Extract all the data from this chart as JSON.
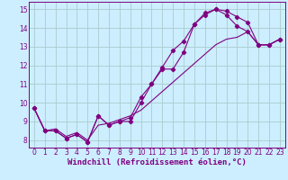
{
  "xlabel": "Windchill (Refroidissement éolien,°C)",
  "bg_color": "#cceeff",
  "line_color": "#800080",
  "grid_color": "#aacccc",
  "xlim": [
    -0.5,
    23.5
  ],
  "ylim": [
    7.6,
    15.4
  ],
  "yticks": [
    8,
    9,
    10,
    11,
    12,
    13,
    14,
    15
  ],
  "xticks": [
    0,
    1,
    2,
    3,
    4,
    5,
    6,
    7,
    8,
    9,
    10,
    11,
    12,
    13,
    14,
    15,
    16,
    17,
    18,
    19,
    20,
    21,
    22,
    23
  ],
  "line1_x": [
    0,
    1,
    2,
    3,
    4,
    5,
    6,
    7,
    8,
    9,
    10,
    11,
    12,
    13,
    14,
    15,
    16,
    17,
    18,
    19,
    20,
    21,
    22,
    23
  ],
  "line1_y": [
    9.7,
    8.5,
    8.5,
    8.1,
    8.3,
    7.9,
    9.3,
    8.8,
    9.0,
    9.0,
    10.0,
    11.0,
    11.8,
    11.8,
    12.7,
    14.2,
    14.7,
    15.0,
    14.9,
    14.6,
    14.3,
    13.1,
    13.1,
    13.4
  ],
  "line2_x": [
    0,
    1,
    2,
    3,
    4,
    5,
    6,
    7,
    8,
    9,
    10,
    11,
    12,
    13,
    14,
    15,
    16,
    17,
    18,
    19,
    20,
    21,
    22,
    23
  ],
  "line2_y": [
    9.7,
    8.5,
    8.5,
    8.1,
    8.3,
    7.9,
    9.3,
    8.8,
    9.0,
    9.2,
    10.3,
    11.0,
    11.9,
    12.8,
    13.3,
    14.2,
    14.8,
    15.0,
    14.7,
    14.1,
    13.8,
    13.1,
    13.1,
    13.4
  ],
  "line3_x": [
    0,
    1,
    2,
    3,
    4,
    5,
    6,
    7,
    8,
    9,
    10,
    11,
    12,
    13,
    14,
    15,
    16,
    17,
    18,
    19,
    20,
    21,
    22,
    23
  ],
  "line3_y": [
    9.7,
    8.5,
    8.6,
    8.2,
    8.4,
    8.0,
    8.8,
    8.9,
    9.1,
    9.3,
    9.6,
    10.1,
    10.6,
    11.1,
    11.6,
    12.1,
    12.6,
    13.1,
    13.4,
    13.5,
    13.8,
    13.1,
    13.1,
    13.4
  ],
  "tick_fontsize": 5.5,
  "xlabel_fontsize": 6.5,
  "marker_size": 2.2,
  "line_width": 0.8
}
